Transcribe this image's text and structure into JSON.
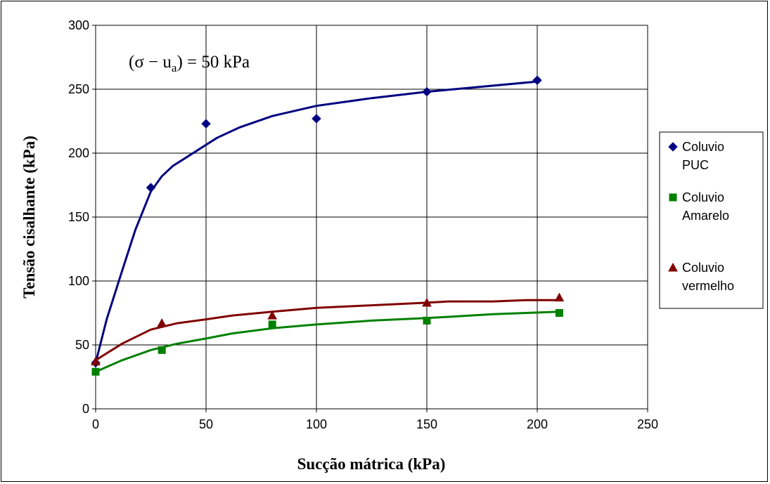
{
  "chart_data": {
    "type": "scatter",
    "title": "",
    "annotation": "(σ − uₐ) = 50 kPa",
    "annotation_main": "(σ − u",
    "annotation_sub": "a",
    "annotation_tail": ") = 50 kPa",
    "xlabel": "Sucção mátrica (kPa)",
    "ylabel": "Tensão cisalhante (kPa)",
    "xlim": [
      0,
      250
    ],
    "ylim": [
      0,
      300
    ],
    "xticks": [
      0,
      50,
      100,
      150,
      200,
      250
    ],
    "yticks": [
      0,
      50,
      100,
      150,
      200,
      250,
      300
    ],
    "grid": true,
    "legend_position": "right",
    "series": [
      {
        "name": "Coluvio PUC",
        "legend_lines": [
          "Coluvio",
          "PUC"
        ],
        "color": "#000080",
        "marker": "diamond",
        "points": [
          [
            0,
            36
          ],
          [
            25,
            173
          ],
          [
            50,
            223
          ],
          [
            100,
            227
          ],
          [
            150,
            248
          ],
          [
            200,
            257
          ]
        ],
        "trend": [
          [
            0,
            36
          ],
          [
            5,
            70
          ],
          [
            12,
            108
          ],
          [
            18,
            140
          ],
          [
            25,
            170
          ],
          [
            30,
            182
          ],
          [
            35,
            190
          ],
          [
            45,
            201
          ],
          [
            55,
            212
          ],
          [
            65,
            220
          ],
          [
            80,
            229
          ],
          [
            100,
            237
          ],
          [
            125,
            243
          ],
          [
            150,
            248
          ],
          [
            175,
            252
          ],
          [
            200,
            256
          ]
        ]
      },
      {
        "name": "Coluvio Amarelo",
        "legend_lines": [
          "Coluvio",
          "Amarelo"
        ],
        "color": "#008000",
        "marker": "square",
        "points": [
          [
            0,
            29
          ],
          [
            30,
            46
          ],
          [
            80,
            66
          ],
          [
            150,
            69
          ],
          [
            210,
            75
          ]
        ],
        "trend": [
          [
            0,
            29
          ],
          [
            12,
            38
          ],
          [
            25,
            46
          ],
          [
            37,
            51
          ],
          [
            50,
            55
          ],
          [
            62,
            59
          ],
          [
            80,
            63
          ],
          [
            100,
            66
          ],
          [
            125,
            69
          ],
          [
            150,
            71
          ],
          [
            160,
            72
          ],
          [
            180,
            74
          ],
          [
            195,
            75
          ],
          [
            210,
            76
          ]
        ]
      },
      {
        "name": "Coluvio vermelho",
        "legend_lines": [
          "Coluvio",
          "vermelho"
        ],
        "color": "#800000",
        "marker": "triangle",
        "points": [
          [
            0,
            37
          ],
          [
            30,
            67
          ],
          [
            80,
            73
          ],
          [
            150,
            83
          ],
          [
            210,
            87
          ]
        ],
        "trend": [
          [
            0,
            38
          ],
          [
            12,
            51
          ],
          [
            25,
            62
          ],
          [
            37,
            67
          ],
          [
            50,
            70
          ],
          [
            62,
            73
          ],
          [
            80,
            76
          ],
          [
            100,
            79
          ],
          [
            125,
            81
          ],
          [
            150,
            83
          ],
          [
            160,
            84
          ],
          [
            180,
            84
          ],
          [
            195,
            85
          ],
          [
            210,
            85
          ]
        ]
      }
    ]
  }
}
